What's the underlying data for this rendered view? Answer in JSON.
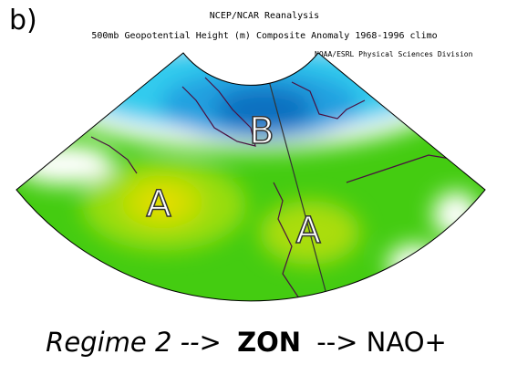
{
  "label": "b)",
  "title": [
    "NCEP/NCAR Reanalysis",
    "500mb Geopotential Height (m) Composite Anomaly 1968-1996 climo"
  ],
  "credit": "NOAA/ESRL Physical Sciences Division",
  "map_labels": [
    "B",
    "A",
    "A"
  ],
  "caption": {
    "regime": "Regime 2 -->",
    "pattern": "ZON",
    "result": "--> NAO+"
  }
}
